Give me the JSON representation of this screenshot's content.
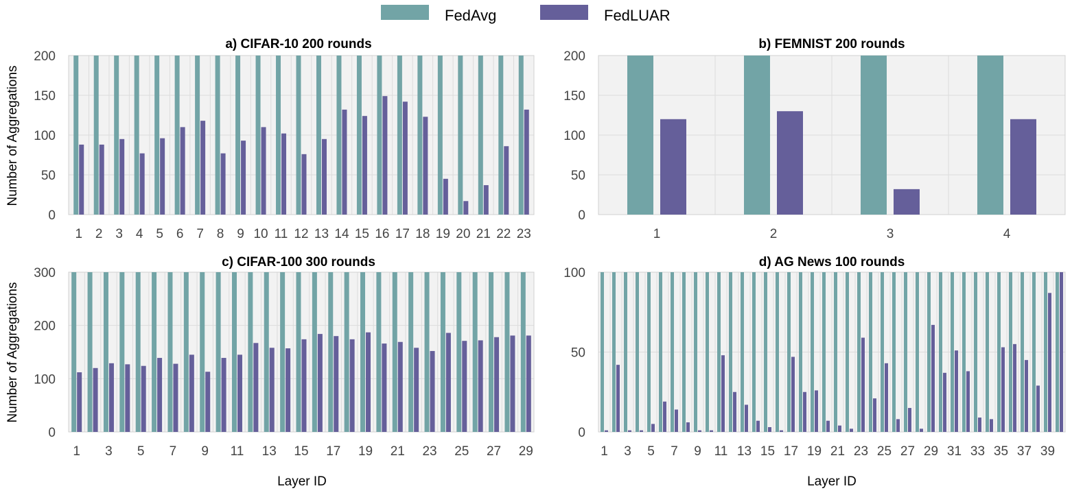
{
  "legend": {
    "entries": [
      {
        "name": "FedAvg",
        "color": "#72a4a6"
      },
      {
        "name": "FedLUAR",
        "color": "#655f9a"
      }
    ]
  },
  "chart_data": [
    {
      "type": "bar",
      "title": "a) CIFAR-10 200 rounds",
      "xlabel": "",
      "ylabel": "Number of Aggregations",
      "ylim": [
        0,
        200
      ],
      "yticks": [
        0,
        50,
        100,
        150,
        200
      ],
      "categories": [
        "1",
        "2",
        "3",
        "4",
        "5",
        "6",
        "7",
        "8",
        "9",
        "10",
        "11",
        "12",
        "13",
        "14",
        "15",
        "16",
        "17",
        "18",
        "19",
        "20",
        "21",
        "22",
        "23"
      ],
      "tick_labels": [
        "1",
        "2",
        "3",
        "4",
        "5",
        "6",
        "7",
        "8",
        "9",
        "10",
        "11",
        "12",
        "13",
        "14",
        "15",
        "16",
        "17",
        "18",
        "19",
        "20",
        "21",
        "22",
        "23"
      ],
      "series": [
        {
          "name": "FedAvg",
          "values": [
            200,
            200,
            200,
            200,
            200,
            200,
            200,
            200,
            200,
            200,
            200,
            200,
            200,
            200,
            200,
            200,
            200,
            200,
            200,
            200,
            200,
            200,
            200
          ]
        },
        {
          "name": "FedLUAR",
          "values": [
            88,
            88,
            95,
            77,
            96,
            110,
            118,
            77,
            93,
            110,
            102,
            76,
            95,
            132,
            124,
            149,
            142,
            123,
            45,
            17,
            37,
            86,
            132
          ]
        }
      ]
    },
    {
      "type": "bar",
      "title": "b) FEMNIST 200 rounds",
      "xlabel": "",
      "ylabel": "",
      "ylim": [
        0,
        200
      ],
      "yticks": [
        0,
        50,
        100,
        150,
        200
      ],
      "categories": [
        "1",
        "2",
        "3",
        "4"
      ],
      "tick_labels": [
        "1",
        "2",
        "3",
        "4"
      ],
      "series": [
        {
          "name": "FedAvg",
          "values": [
            200,
            200,
            200,
            200
          ]
        },
        {
          "name": "FedLUAR",
          "values": [
            120,
            130,
            32,
            120
          ]
        }
      ]
    },
    {
      "type": "bar",
      "title": "c) CIFAR-100 300 rounds",
      "xlabel": "Layer ID",
      "ylabel": "Number of Aggregations",
      "ylim": [
        0,
        300
      ],
      "yticks": [
        0,
        100,
        200,
        300
      ],
      "categories": [
        "1",
        "2",
        "3",
        "4",
        "5",
        "6",
        "7",
        "8",
        "9",
        "10",
        "11",
        "12",
        "13",
        "14",
        "15",
        "16",
        "17",
        "18",
        "19",
        "20",
        "21",
        "22",
        "23",
        "24",
        "25",
        "26",
        "27",
        "28",
        "29"
      ],
      "tick_labels": [
        "1",
        "3",
        "5",
        "7",
        "9",
        "11",
        "13",
        "15",
        "17",
        "19",
        "21",
        "23",
        "25",
        "27",
        "29"
      ],
      "series": [
        {
          "name": "FedAvg",
          "values": [
            300,
            300,
            300,
            300,
            300,
            300,
            300,
            300,
            300,
            300,
            300,
            300,
            300,
            300,
            300,
            300,
            300,
            300,
            300,
            300,
            300,
            300,
            300,
            300,
            300,
            300,
            300,
            300,
            300
          ]
        },
        {
          "name": "FedLUAR",
          "values": [
            112,
            120,
            129,
            127,
            124,
            139,
            128,
            145,
            113,
            139,
            145,
            167,
            158,
            157,
            174,
            184,
            180,
            174,
            187,
            166,
            169,
            158,
            152,
            186,
            171,
            172,
            178,
            181,
            181
          ]
        }
      ]
    },
    {
      "type": "bar",
      "title": "d) AG News 100 rounds",
      "xlabel": "Layer ID",
      "ylabel": "",
      "ylim": [
        0,
        100
      ],
      "yticks": [
        0,
        50,
        100
      ],
      "categories": [
        "1",
        "2",
        "3",
        "4",
        "5",
        "6",
        "7",
        "8",
        "9",
        "10",
        "11",
        "12",
        "13",
        "14",
        "15",
        "16",
        "17",
        "18",
        "19",
        "20",
        "21",
        "22",
        "23",
        "24",
        "25",
        "26",
        "27",
        "28",
        "29",
        "30",
        "31",
        "32",
        "33",
        "34",
        "35",
        "36",
        "37",
        "38",
        "39",
        "40"
      ],
      "tick_labels": [
        "1",
        "3",
        "5",
        "7",
        "9",
        "11",
        "13",
        "15",
        "17",
        "19",
        "21",
        "23",
        "25",
        "27",
        "29",
        "31",
        "33",
        "35",
        "37",
        "39"
      ],
      "series": [
        {
          "name": "FedAvg",
          "values": [
            100,
            100,
            100,
            100,
            100,
            100,
            100,
            100,
            100,
            100,
            100,
            100,
            100,
            100,
            100,
            100,
            100,
            100,
            100,
            100,
            100,
            100,
            100,
            100,
            100,
            100,
            100,
            100,
            100,
            100,
            100,
            100,
            100,
            100,
            100,
            100,
            100,
            100,
            100,
            100
          ]
        },
        {
          "name": "FedLUAR",
          "values": [
            1,
            42,
            1,
            1,
            5,
            19,
            14,
            6,
            1,
            1,
            48,
            25,
            17,
            7,
            3,
            1,
            47,
            25,
            26,
            7,
            4,
            2,
            59,
            21,
            43,
            8,
            15,
            2,
            67,
            37,
            51,
            38,
            9,
            8,
            53,
            55,
            45,
            29,
            87,
            100
          ]
        }
      ]
    }
  ]
}
